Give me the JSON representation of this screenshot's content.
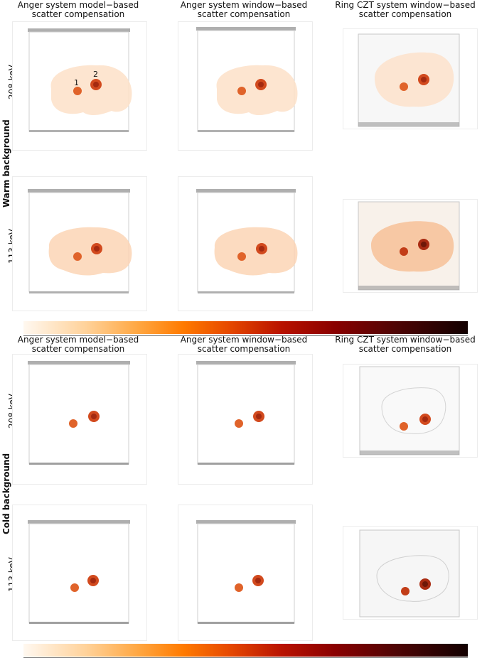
{
  "column_titles": [
    {
      "line1": "Anger system model−based",
      "line2": "scatter compensation"
    },
    {
      "line1": "Anger system window−based",
      "line2": "scatter compensation"
    },
    {
      "line1": "Ring CZT system window−based",
      "line2": "scatter compensation"
    }
  ],
  "groups": [
    {
      "label": "Warm background",
      "rows": [
        {
          "label": "208 keV"
        },
        {
          "label": "113 keV"
        }
      ]
    },
    {
      "label": "Cold background",
      "rows": [
        {
          "label": "208 keV"
        },
        {
          "label": "113 keV"
        }
      ]
    }
  ],
  "markers": {
    "one": "1",
    "two": "2"
  },
  "colors": {
    "colormap_light": "#fff8f0",
    "colormap_mid": "#ff7a00",
    "colormap_dark": "#120000",
    "lesion": "#d24a1e",
    "warm_body": "#fde0c8"
  }
}
